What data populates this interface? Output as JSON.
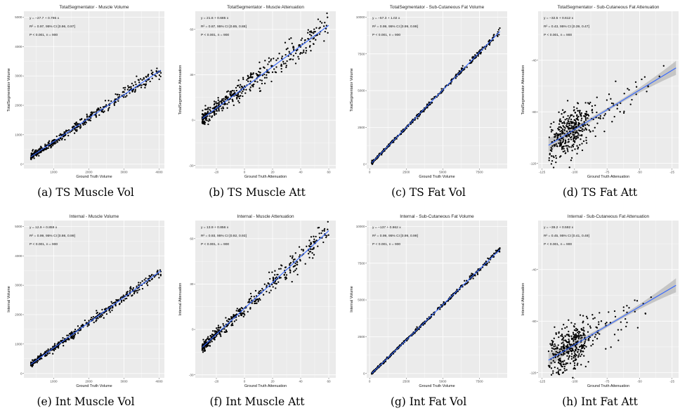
{
  "figure": {
    "panels": [
      {
        "caption": "(a) TS Muscle Vol",
        "title": "TotalSegmentator - Muscle Volume",
        "xlabel": "Ground Truth Volume",
        "ylabel": "TotalSegmentator Volume",
        "eq": "y = −27.7 + 0.796 x",
        "r2": "R² = 0.97, 95% CI [0.96, 0.97]",
        "pn": "P < 0.001, n = 900"
      },
      {
        "caption": "(b) TS Muscle Att",
        "title": "TotalSegmentator - Muscle Attenuation",
        "xlabel": "Ground Truth Attenuation",
        "ylabel": "TotalSegmentator Attenuation",
        "eq": "y = 21.6 + 0.685 x",
        "r2": "R² = 0.87, 95% CI [0.85, 0.88]",
        "pn": "P < 0.001, n = 900"
      },
      {
        "caption": "(c) TS Fat Vol",
        "title": "TotalSegmentator - Sub-Cutaneous Fat Volume",
        "xlabel": "Ground Truth Volume",
        "ylabel": "TotalSegmentator Volume",
        "eq": "y = −57.3 + 1.02 x",
        "r2": "R² = 0.99, 95% CI [0.99, 0.99]",
        "pn": "P < 0.001, n = 900"
      },
      {
        "caption": "(d) TS Fat Att",
        "title": "TotalSegmentator - Sub-Cutaneous Fat Attenuation",
        "xlabel": "Ground Truth Attenuation",
        "ylabel": "TotalSegmentator Attenuation",
        "eq": "y = −32.5 + 0.612 x",
        "r2": "R² = 0.43, 95% CI [0.39, 0.47]",
        "pn": "P < 0.001, n = 900"
      },
      {
        "caption": "(e) Int Muscle Vol",
        "title": "Internal - Muscle Volume",
        "xlabel": "Ground Truth Volume",
        "ylabel": "Internal Volume",
        "eq": "y = 12.9 + 0.859 x",
        "r2": "R² = 0.99, 95% CI [0.98, 0.99]",
        "pn": "P < 0.001, n = 900"
      },
      {
        "caption": "(f) Int Muscle Att",
        "title": "Internal - Muscle Attenuation",
        "xlabel": "Ground Truth Attenuation",
        "ylabel": "Internal Attenuation",
        "eq": "y = 13.9 + 0.856 x",
        "r2": "R² = 0.93, 95% CI [0.92, 0.93]",
        "pn": "P < 0.001, n = 900"
      },
      {
        "caption": "(g) Int Fat Vol",
        "title": "Internal - Sub-Cutaneous Fat Volume",
        "xlabel": "Ground Truth Volume",
        "ylabel": "Internal Volume",
        "eq": "y = −137 + 0.962 x",
        "r2": "R² = 0.99, 95% CI [0.99, 0.99]",
        "pn": "P < 0.001, n = 900"
      },
      {
        "caption": "(h) Int Fat Att",
        "title": "Internal - Sub-Cutaneous Fat Attenuation",
        "xlabel": "Ground Truth Attenuation",
        "ylabel": "Internal Attenuation",
        "eq": "y = −39.2 + 0.592 x",
        "r2": "R² = 0.45, 95% CI [0.41, 0.49]",
        "pn": "P < 0.001, n = 900"
      }
    ]
  },
  "colors": {
    "panel_bg": "#ebebeb",
    "grid": "#ffffff",
    "points": "#000000",
    "fit_line": "#3366ff",
    "ci_band": "#b8b8b8"
  },
  "chart_data": [
    {
      "type": "scatter",
      "title": "TotalSegmentator - Muscle Volume",
      "xlabel": "Ground Truth Volume",
      "ylabel": "TotalSegmentator Volume",
      "xlim": [
        150,
        4150
      ],
      "ylim": [
        -150,
        5200
      ],
      "xticks": [
        1000,
        2000,
        3000,
        4000
      ],
      "yticks": [
        0,
        1000,
        2000,
        3000,
        4000,
        5000
      ],
      "fit": {
        "intercept": -27.7,
        "slope": 0.796
      },
      "ci_band": false,
      "n": 900,
      "x_range": [
        350,
        4050
      ],
      "noise_sd": 95,
      "seed": 11,
      "grid": true
    },
    {
      "type": "scatter",
      "title": "TotalSegmentator - Muscle Attenuation",
      "xlabel": "Ground Truth Attenuation",
      "ylabel": "TotalSegmentator Attenuation",
      "xlim": [
        -35,
        65
      ],
      "ylim": [
        -32,
        72
      ],
      "xticks": [
        -20,
        0,
        20,
        40,
        60
      ],
      "yticks": [
        -30,
        0,
        30,
        60
      ],
      "fit": {
        "intercept": 21.6,
        "slope": 0.685
      },
      "ci_band": false,
      "n": 900,
      "x_range": [
        -30,
        60
      ],
      "noise_sd": 3.8,
      "seed": 22,
      "grid": true
    },
    {
      "type": "scatter",
      "title": "TotalSegmentator - Sub-Cutaneous Fat Volume",
      "xlabel": "Ground Truth Volume",
      "ylabel": "TotalSegmentator Volume",
      "xlim": [
        -200,
        9400
      ],
      "ylim": [
        -300,
        10400
      ],
      "xticks": [
        0,
        2500,
        5000,
        7500
      ],
      "yticks": [
        0,
        2500,
        5000,
        7500,
        10000
      ],
      "fit": {
        "intercept": -57.3,
        "slope": 1.02
      },
      "ci_band": false,
      "n": 900,
      "x_range": [
        150,
        8900
      ],
      "noise_sd": 70,
      "seed": 33,
      "grid": true
    },
    {
      "type": "scatter",
      "title": "TotalSegmentator - Sub-Cutaneous Fat Attenuation",
      "xlabel": "Ground Truth Attenuation",
      "ylabel": "TotalSegmentator Attenuation",
      "xlim": [
        -128,
        -20
      ],
      "ylim": [
        -124,
        -2
      ],
      "xticks": [
        -125,
        -100,
        -75,
        -50,
        -25
      ],
      "yticks": [
        -120,
        -80,
        -40
      ],
      "fit": {
        "intercept": -32.5,
        "slope": 0.612
      },
      "ci_band": true,
      "n": 900,
      "x_range": [
        -120,
        -22
      ],
      "noise_sd": 9,
      "seed": 44,
      "grid": true
    },
    {
      "type": "scatter",
      "title": "Internal - Muscle Volume",
      "xlabel": "Ground Truth Volume",
      "ylabel": "Internal Volume",
      "xlim": [
        150,
        4150
      ],
      "ylim": [
        -150,
        5200
      ],
      "xticks": [
        1000,
        2000,
        3000,
        4000
      ],
      "yticks": [
        0,
        1000,
        2000,
        3000,
        4000,
        5000
      ],
      "fit": {
        "intercept": 12.9,
        "slope": 0.859
      },
      "ci_band": false,
      "n": 900,
      "x_range": [
        350,
        4050
      ],
      "noise_sd": 75,
      "seed": 55,
      "grid": true
    },
    {
      "type": "scatter",
      "title": "Internal - Muscle Attenuation",
      "xlabel": "Ground Truth Attenuation",
      "ylabel": "Internal Attenuation",
      "xlim": [
        -35,
        65
      ],
      "ylim": [
        -32,
        72
      ],
      "xticks": [
        -20,
        0,
        20,
        40,
        60
      ],
      "yticks": [
        -30,
        0,
        30,
        60
      ],
      "fit": {
        "intercept": 13.9,
        "slope": 0.856
      },
      "ci_band": false,
      "n": 900,
      "x_range": [
        -30,
        60
      ],
      "noise_sd": 3.0,
      "seed": 66,
      "grid": true
    },
    {
      "type": "scatter",
      "title": "Internal - Sub-Cutaneous Fat Volume",
      "xlabel": "Ground Truth Volume",
      "ylabel": "Internal Volume",
      "xlim": [
        -200,
        9400
      ],
      "ylim": [
        -300,
        10400
      ],
      "xticks": [
        0,
        2500,
        5000,
        7500
      ],
      "yticks": [
        0,
        2500,
        5000,
        7500,
        10000
      ],
      "fit": {
        "intercept": -137,
        "slope": 0.962
      },
      "ci_band": false,
      "n": 900,
      "x_range": [
        150,
        8900
      ],
      "noise_sd": 65,
      "seed": 77,
      "grid": true
    },
    {
      "type": "scatter",
      "title": "Internal - Sub-Cutaneous Fat Attenuation",
      "xlabel": "Ground Truth Attenuation",
      "ylabel": "Internal Attenuation",
      "xlim": [
        -128,
        -20
      ],
      "ylim": [
        -124,
        -2
      ],
      "xticks": [
        -125,
        -100,
        -75,
        -50,
        -25
      ],
      "yticks": [
        -120,
        -80,
        -40
      ],
      "fit": {
        "intercept": -39.2,
        "slope": 0.592
      },
      "ci_band": true,
      "n": 900,
      "x_range": [
        -120,
        -22
      ],
      "noise_sd": 8.5,
      "seed": 88,
      "grid": true
    }
  ]
}
